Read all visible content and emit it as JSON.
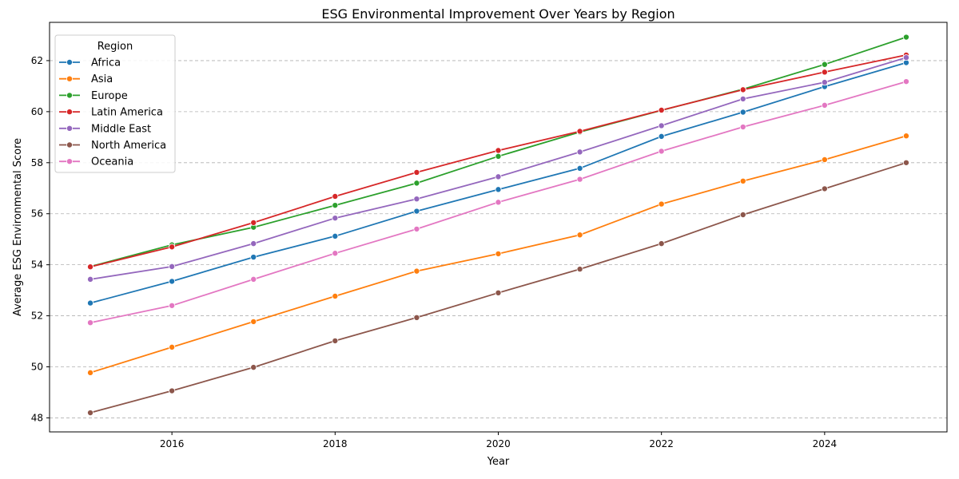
{
  "chart_data": {
    "type": "line",
    "title": "ESG Environmental Improvement Over Years by Region",
    "xlabel": "Year",
    "ylabel": "Average ESG Environmental Score",
    "xlim": [
      2014.5,
      2025.5
    ],
    "ylim": [
      47.45,
      63.5
    ],
    "x_ticks": [
      2016,
      2018,
      2020,
      2022,
      2024
    ],
    "y_ticks": [
      48,
      50,
      52,
      54,
      56,
      58,
      60,
      62
    ],
    "grid": "y dashed",
    "legend_title": "Region",
    "legend_position": "top-left",
    "x": [
      2015,
      2016,
      2017,
      2018,
      2019,
      2020,
      2021,
      2022,
      2023,
      2024,
      2025
    ],
    "series": [
      {
        "name": "Africa",
        "color": "#1f77b4",
        "values": [
          52.5,
          53.35,
          54.3,
          55.12,
          56.1,
          56.95,
          57.78,
          59.03,
          59.98,
          60.98,
          61.92
        ]
      },
      {
        "name": "Asia",
        "color": "#ff7f0e",
        "values": [
          49.77,
          50.77,
          51.77,
          52.77,
          53.75,
          54.43,
          55.17,
          56.38,
          57.28,
          58.12,
          59.05
        ]
      },
      {
        "name": "Europe",
        "color": "#2ca02c",
        "values": [
          53.93,
          54.78,
          55.47,
          56.33,
          57.2,
          58.25,
          59.2,
          60.05,
          60.88,
          61.85,
          62.92
        ]
      },
      {
        "name": "Latin America",
        "color": "#d62728",
        "values": [
          53.92,
          54.7,
          55.65,
          56.68,
          57.62,
          58.48,
          59.23,
          60.06,
          60.86,
          61.55,
          62.22
        ]
      },
      {
        "name": "Middle East",
        "color": "#9467bd",
        "values": [
          53.43,
          53.93,
          54.83,
          55.83,
          56.58,
          57.45,
          58.42,
          59.45,
          60.5,
          61.15,
          62.12
        ]
      },
      {
        "name": "North America",
        "color": "#8c564b",
        "values": [
          48.2,
          49.06,
          49.98,
          51.02,
          51.93,
          52.9,
          53.83,
          54.83,
          55.96,
          56.98,
          58.0
        ]
      },
      {
        "name": "Oceania",
        "color": "#e377c2",
        "values": [
          51.73,
          52.4,
          53.43,
          54.45,
          55.4,
          56.45,
          57.35,
          58.45,
          59.4,
          60.25,
          61.18
        ]
      }
    ]
  }
}
